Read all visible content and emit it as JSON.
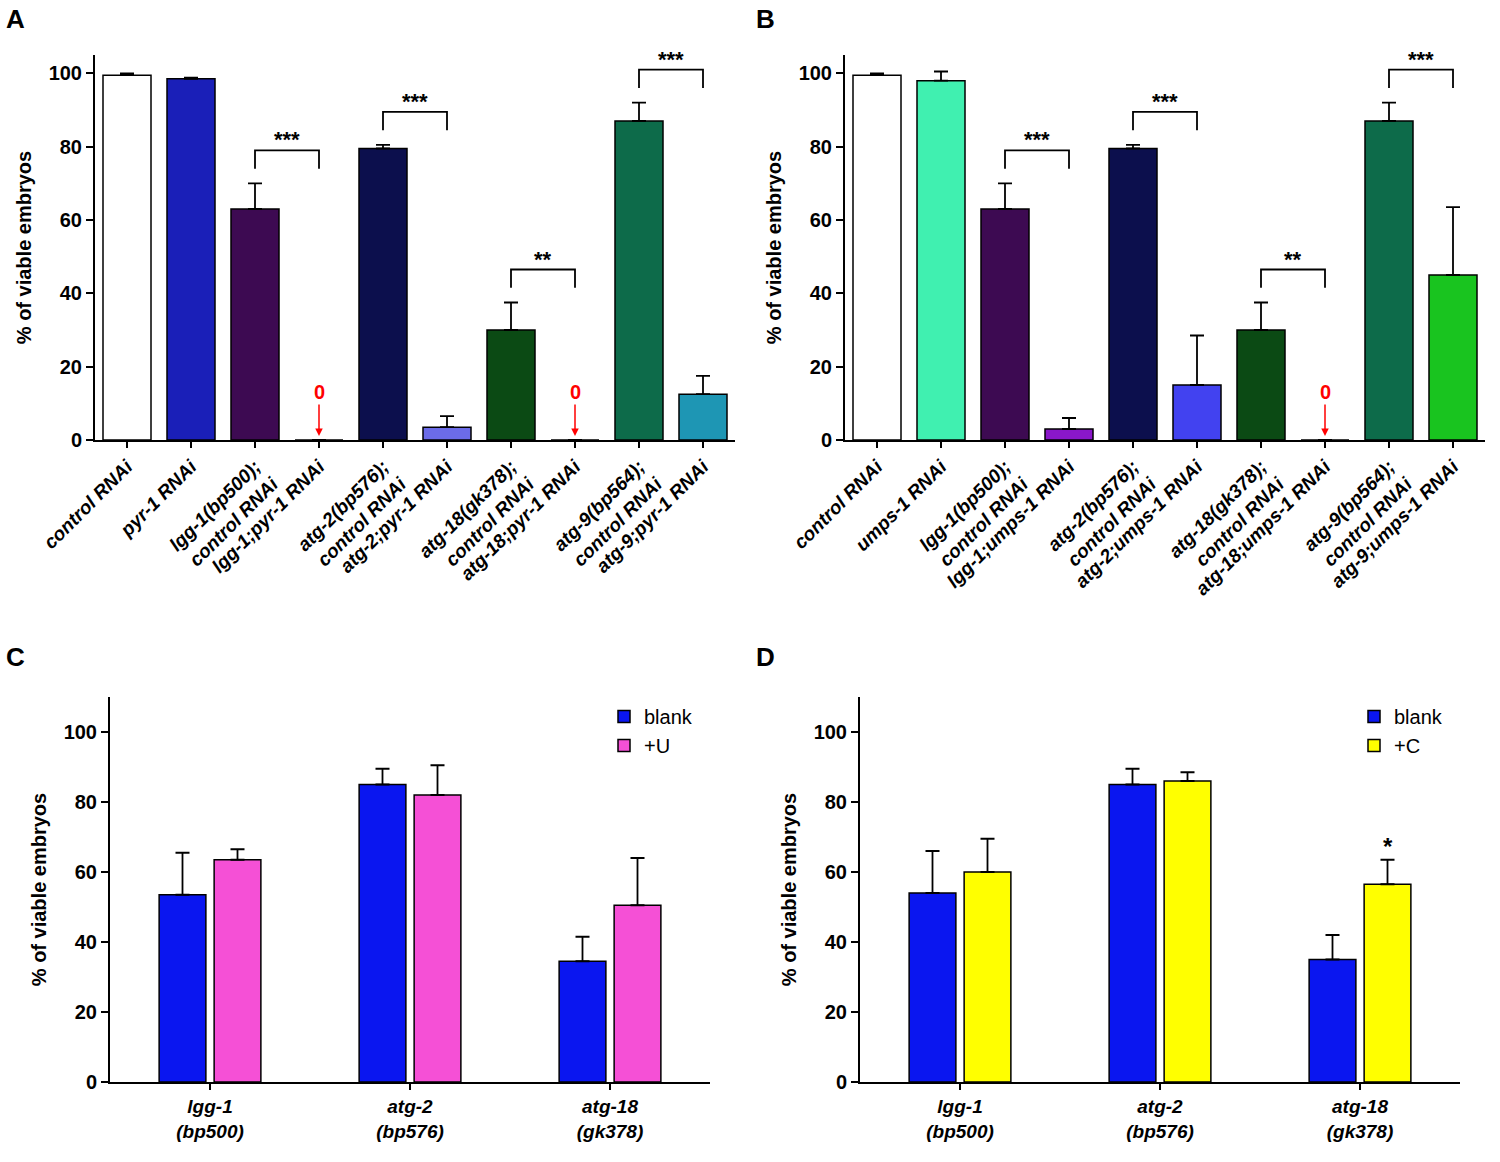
{
  "chart_data": [
    {
      "type": "bar",
      "title": "A",
      "y_label": "% of viable embryos",
      "categories": [
        "control RNAi",
        "pyr-1 RNAi",
        "lgg-1(bp500);\ncontrol RNAi",
        "lgg-1;pyr-1 RNAi",
        "atg-2(bp576);\ncontrol RNAi",
        "atg-2;pyr-1 RNAi",
        "atg-18(gk378);\ncontrol RNAi",
        "atg-18;pyr-1 RNAi",
        "atg-9(bp564);\ncontrol RNAi",
        "atg-9;pyr-1 RNAi"
      ],
      "values": [
        99.5,
        98.5,
        63,
        0,
        79.5,
        3.5,
        30,
        0,
        87,
        12.5
      ],
      "errors": [
        0.5,
        0.3,
        7,
        0,
        1,
        3,
        7.5,
        0,
        5,
        5
      ],
      "colors": [
        "#ffffff",
        "#1a1fb8",
        "#3d0a52",
        "#3d0a52",
        "#0c0f4d",
        "#6b6be8",
        "#0b4a14",
        "#0b4a14",
        "#0d6b4a",
        "#1e96b4"
      ],
      "ylim": [
        0,
        105
      ],
      "yticks": [
        0,
        20,
        40,
        60,
        80,
        100
      ],
      "grid": false,
      "comparisons": [
        {
          "from": 2,
          "to": 3,
          "text": "***"
        },
        {
          "from": 4,
          "to": 5,
          "text": "***"
        },
        {
          "from": 6,
          "to": 7,
          "text": "**"
        },
        {
          "from": 8,
          "to": 9,
          "text": "***"
        }
      ],
      "annotations": [
        {
          "category": 3,
          "text": "0"
        },
        {
          "category": 7,
          "text": "0"
        }
      ]
    },
    {
      "type": "bar",
      "title": "B",
      "y_label": "% of viable embryos",
      "categories": [
        "control RNAi",
        "umps-1 RNAi",
        "lgg-1(bp500);\ncontrol RNAi",
        "lgg-1;umps-1 RNAi",
        "atg-2(bp576);\ncontrol RNAi",
        "atg-2;umps-1 RNAi",
        "atg-18(gk378);\ncontrol RNAi",
        "atg-18;umps-1 RNAi",
        "atg-9(bp564);\ncontrol RNAi",
        "atg-9;umps-1 RNAi"
      ],
      "values": [
        99.5,
        98,
        63,
        3,
        79.5,
        15,
        30,
        0,
        87,
        45
      ],
      "errors": [
        0.5,
        2.5,
        7,
        3,
        1,
        13.5,
        7.5,
        0,
        5,
        18.5
      ],
      "colors": [
        "#ffffff",
        "#40f0b0",
        "#3d0a52",
        "#8a17c9",
        "#0c0f4d",
        "#4242f0",
        "#0b4a14",
        "#0b4a14",
        "#0d6b4a",
        "#19c41f"
      ],
      "ylim": [
        0,
        105
      ],
      "yticks": [
        0,
        20,
        40,
        60,
        80,
        100
      ],
      "grid": false,
      "comparisons": [
        {
          "from": 2,
          "to": 3,
          "text": "***"
        },
        {
          "from": 4,
          "to": 5,
          "text": "***"
        },
        {
          "from": 6,
          "to": 7,
          "text": "**"
        },
        {
          "from": 8,
          "to": 9,
          "text": "***"
        }
      ],
      "annotations": [
        {
          "category": 7,
          "text": "0"
        }
      ]
    },
    {
      "type": "bar",
      "title": "C",
      "y_label": "% of viable embryos",
      "categories": [
        "lgg-1\n(bp500)",
        "atg-2\n(bp576)",
        "atg-18\n(gk378)"
      ],
      "series": [
        {
          "name": "blank",
          "color": "#0a16f0",
          "values": [
            53.5,
            85,
            34.5
          ],
          "errors": [
            12,
            4.5,
            7
          ]
        },
        {
          "name": "+U",
          "color": "#f550d6",
          "values": [
            63.5,
            82,
            50.5
          ],
          "errors": [
            3,
            8.5,
            13.5
          ]
        }
      ],
      "ylim": [
        0,
        110
      ],
      "yticks": [
        0,
        20,
        40,
        60,
        80,
        100
      ],
      "grid": false,
      "legend": "top right"
    },
    {
      "type": "bar",
      "title": "D",
      "y_label": "% of viable embryos",
      "categories": [
        "lgg-1\n(bp500)",
        "atg-2\n(bp576)",
        "atg-18\n(gk378)"
      ],
      "series": [
        {
          "name": "blank",
          "color": "#0a16f0",
          "values": [
            54,
            85,
            35
          ],
          "errors": [
            12,
            4.5,
            7
          ]
        },
        {
          "name": "+C",
          "color": "#ffff00",
          "values": [
            60,
            86,
            56.5
          ],
          "errors": [
            9.5,
            2.5,
            7
          ]
        }
      ],
      "ylim": [
        0,
        110
      ],
      "yticks": [
        0,
        20,
        40,
        60,
        80,
        100
      ],
      "grid": false,
      "legend": "top right",
      "annotations": [
        {
          "category": 2,
          "series": 1,
          "text": "*"
        }
      ]
    }
  ]
}
